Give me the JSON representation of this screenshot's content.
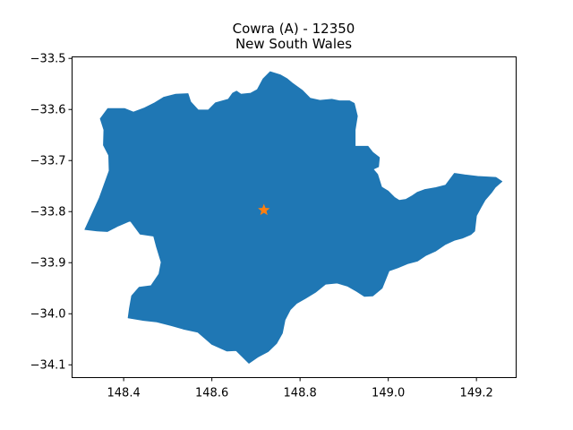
{
  "figure": {
    "title_line1": "Cowra (A) - 12350",
    "title_line2": "New South Wales"
  },
  "colors": {
    "region_fill": "#1f77b4",
    "marker": "#ff7f0e",
    "axes": "#000000",
    "background": "#ffffff"
  },
  "chart_data": {
    "type": "map",
    "region_name": "Cowra (A)",
    "region_code": "12350",
    "state": "New South Wales",
    "xlim": [
      148.283,
      149.29
    ],
    "ylim": [
      -34.125,
      -33.497
    ],
    "x_ticks": [
      {
        "value": 148.4,
        "label": "148.4"
      },
      {
        "value": 148.6,
        "label": "148.6"
      },
      {
        "value": 148.8,
        "label": "148.8"
      },
      {
        "value": 149.0,
        "label": "149.0"
      },
      {
        "value": 149.2,
        "label": "149.2"
      }
    ],
    "y_ticks": [
      {
        "value": -33.5,
        "label": "−33.5"
      },
      {
        "value": -33.6,
        "label": "−33.6"
      },
      {
        "value": -33.7,
        "label": "−33.7"
      },
      {
        "value": -33.8,
        "label": "−33.8"
      },
      {
        "value": -33.9,
        "label": "−33.9"
      },
      {
        "value": -34.0,
        "label": "−34.0"
      },
      {
        "value": -34.1,
        "label": "−34.1"
      }
    ],
    "centroid": {
      "lon": 148.718,
      "lat": -33.797,
      "marker": "star-icon"
    },
    "boundary": [
      [
        148.312,
        -33.835
      ],
      [
        148.345,
        -33.773
      ],
      [
        148.367,
        -33.72
      ],
      [
        148.366,
        -33.69
      ],
      [
        148.354,
        -33.67
      ],
      [
        148.355,
        -33.64
      ],
      [
        148.347,
        -33.618
      ],
      [
        148.364,
        -33.598
      ],
      [
        148.402,
        -33.598
      ],
      [
        148.422,
        -33.605
      ],
      [
        148.447,
        -33.597
      ],
      [
        148.47,
        -33.587
      ],
      [
        148.491,
        -33.576
      ],
      [
        148.518,
        -33.57
      ],
      [
        148.546,
        -33.569
      ],
      [
        148.552,
        -33.585
      ],
      [
        148.569,
        -33.601
      ],
      [
        148.592,
        -33.601
      ],
      [
        148.608,
        -33.587
      ],
      [
        148.637,
        -33.58
      ],
      [
        148.647,
        -33.568
      ],
      [
        148.656,
        -33.564
      ],
      [
        148.666,
        -33.57
      ],
      [
        148.688,
        -33.568
      ],
      [
        148.703,
        -33.561
      ],
      [
        148.716,
        -33.54
      ],
      [
        148.732,
        -33.526
      ],
      [
        148.755,
        -33.532
      ],
      [
        148.771,
        -33.54
      ],
      [
        148.782,
        -33.548
      ],
      [
        148.806,
        -33.563
      ],
      [
        148.823,
        -33.578
      ],
      [
        148.845,
        -33.582
      ],
      [
        148.872,
        -33.58
      ],
      [
        148.889,
        -33.583
      ],
      [
        148.912,
        -33.583
      ],
      [
        148.923,
        -33.588
      ],
      [
        148.93,
        -33.613
      ],
      [
        148.925,
        -33.64
      ],
      [
        148.925,
        -33.672
      ],
      [
        148.954,
        -33.672
      ],
      [
        148.965,
        -33.684
      ],
      [
        148.98,
        -33.694
      ],
      [
        148.978,
        -33.712
      ],
      [
        148.966,
        -33.717
      ],
      [
        148.976,
        -33.727
      ],
      [
        148.985,
        -33.752
      ],
      [
        149.0,
        -33.76
      ],
      [
        149.014,
        -33.772
      ],
      [
        149.025,
        -33.778
      ],
      [
        149.04,
        -33.776
      ],
      [
        149.054,
        -33.769
      ],
      [
        149.066,
        -33.762
      ],
      [
        149.082,
        -33.757
      ],
      [
        149.108,
        -33.753
      ],
      [
        149.13,
        -33.748
      ],
      [
        149.15,
        -33.725
      ],
      [
        149.173,
        -33.728
      ],
      [
        149.203,
        -33.731
      ],
      [
        149.226,
        -33.732
      ],
      [
        149.244,
        -33.733
      ],
      [
        149.258,
        -33.741
      ],
      [
        149.243,
        -33.752
      ],
      [
        149.234,
        -33.763
      ],
      [
        149.22,
        -33.777
      ],
      [
        149.21,
        -33.792
      ],
      [
        149.2,
        -33.808
      ],
      [
        149.196,
        -33.838
      ],
      [
        149.187,
        -33.845
      ],
      [
        149.168,
        -33.852
      ],
      [
        149.15,
        -33.856
      ],
      [
        149.13,
        -33.864
      ],
      [
        149.108,
        -33.877
      ],
      [
        149.085,
        -33.886
      ],
      [
        149.066,
        -33.897
      ],
      [
        149.044,
        -33.902
      ],
      [
        149.022,
        -33.91
      ],
      [
        149.002,
        -33.916
      ],
      [
        148.986,
        -33.95
      ],
      [
        148.965,
        -33.965
      ],
      [
        148.946,
        -33.966
      ],
      [
        148.928,
        -33.956
      ],
      [
        148.908,
        -33.946
      ],
      [
        148.884,
        -33.94
      ],
      [
        148.858,
        -33.942
      ],
      [
        148.835,
        -33.958
      ],
      [
        148.812,
        -33.97
      ],
      [
        148.792,
        -33.98
      ],
      [
        148.778,
        -33.992
      ],
      [
        148.766,
        -34.012
      ],
      [
        148.76,
        -34.038
      ],
      [
        148.747,
        -34.058
      ],
      [
        148.728,
        -34.074
      ],
      [
        148.704,
        -34.085
      ],
      [
        148.684,
        -34.097
      ],
      [
        148.655,
        -34.072
      ],
      [
        148.634,
        -34.073
      ],
      [
        148.6,
        -34.06
      ],
      [
        148.568,
        -34.036
      ],
      [
        148.535,
        -34.03
      ],
      [
        148.507,
        -34.023
      ],
      [
        148.475,
        -34.016
      ],
      [
        148.445,
        -34.013
      ],
      [
        148.41,
        -34.008
      ],
      [
        148.413,
        -33.99
      ],
      [
        148.418,
        -33.965
      ],
      [
        148.435,
        -33.948
      ],
      [
        148.462,
        -33.945
      ],
      [
        148.48,
        -33.922
      ],
      [
        148.485,
        -33.899
      ],
      [
        148.474,
        -33.868
      ],
      [
        148.468,
        -33.848
      ],
      [
        148.437,
        -33.844
      ],
      [
        148.415,
        -33.818
      ],
      [
        148.388,
        -33.828
      ],
      [
        148.363,
        -33.839
      ],
      [
        148.34,
        -33.838
      ],
      [
        148.312,
        -33.835
      ]
    ]
  }
}
